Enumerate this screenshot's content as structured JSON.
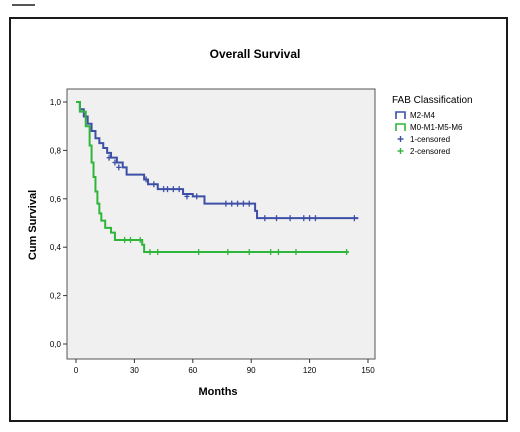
{
  "chart_data": {
    "type": "line",
    "subtype": "kaplan-meier",
    "title": "Overall Survival",
    "xlabel": "Months",
    "ylabel": "Cum Survival",
    "xlim": [
      0,
      150
    ],
    "ylim": [
      0,
      1.0
    ],
    "xticks": [
      "0",
      "30",
      "60",
      "90",
      "120",
      "150"
    ],
    "yticks": [
      "0,0",
      "0,2",
      "0,4",
      "0,6",
      "0,8",
      "1,0"
    ],
    "grid": false,
    "legend": {
      "title": "FAB Classification",
      "placement": "right",
      "entries": [
        "M2-M4",
        "M0-M1-M5-M6",
        "1-censored",
        "2-censored"
      ]
    },
    "series": [
      {
        "name": "M2-M4",
        "color": "#3d4fa6",
        "steps": [
          [
            0,
            1.0
          ],
          [
            2,
            0.97
          ],
          [
            4,
            0.94
          ],
          [
            6,
            0.91
          ],
          [
            8,
            0.88
          ],
          [
            10,
            0.85
          ],
          [
            12,
            0.83
          ],
          [
            14,
            0.81
          ],
          [
            16,
            0.79
          ],
          [
            18,
            0.77
          ],
          [
            21,
            0.75
          ],
          [
            24,
            0.73
          ],
          [
            26,
            0.7
          ],
          [
            35,
            0.68
          ],
          [
            37,
            0.66
          ],
          [
            42,
            0.64
          ],
          [
            55,
            0.62
          ],
          [
            60,
            0.61
          ],
          [
            66,
            0.58
          ],
          [
            92,
            0.55
          ],
          [
            93,
            0.52
          ],
          [
            145,
            0.52
          ]
        ],
        "censored": [
          [
            17,
            0.77
          ],
          [
            20,
            0.75
          ],
          [
            22,
            0.73
          ],
          [
            36,
            0.68
          ],
          [
            40,
            0.66
          ],
          [
            45,
            0.64
          ],
          [
            47,
            0.64
          ],
          [
            50,
            0.64
          ],
          [
            53,
            0.64
          ],
          [
            57,
            0.61
          ],
          [
            62,
            0.61
          ],
          [
            77,
            0.58
          ],
          [
            80,
            0.58
          ],
          [
            83,
            0.58
          ],
          [
            86,
            0.58
          ],
          [
            89,
            0.58
          ],
          [
            97,
            0.52
          ],
          [
            103,
            0.52
          ],
          [
            110,
            0.52
          ],
          [
            117,
            0.52
          ],
          [
            120,
            0.52
          ],
          [
            123,
            0.52
          ],
          [
            143,
            0.52
          ]
        ]
      },
      {
        "name": "M0-M1-M5-M6",
        "color": "#2fb53a",
        "steps": [
          [
            0,
            1.0
          ],
          [
            2,
            0.96
          ],
          [
            5,
            0.9
          ],
          [
            7,
            0.82
          ],
          [
            8,
            0.75
          ],
          [
            9,
            0.69
          ],
          [
            10,
            0.63
          ],
          [
            11,
            0.58
          ],
          [
            12,
            0.54
          ],
          [
            13,
            0.51
          ],
          [
            15,
            0.48
          ],
          [
            18,
            0.46
          ],
          [
            20,
            0.43
          ],
          [
            34,
            0.41
          ],
          [
            35,
            0.38
          ],
          [
            140,
            0.38
          ]
        ],
        "censored": [
          [
            25,
            0.43
          ],
          [
            28,
            0.43
          ],
          [
            33,
            0.43
          ],
          [
            38,
            0.38
          ],
          [
            42,
            0.38
          ],
          [
            63,
            0.38
          ],
          [
            78,
            0.38
          ],
          [
            89,
            0.38
          ],
          [
            100,
            0.38
          ],
          [
            104,
            0.38
          ],
          [
            113,
            0.38
          ],
          [
            139,
            0.38
          ]
        ]
      }
    ]
  }
}
